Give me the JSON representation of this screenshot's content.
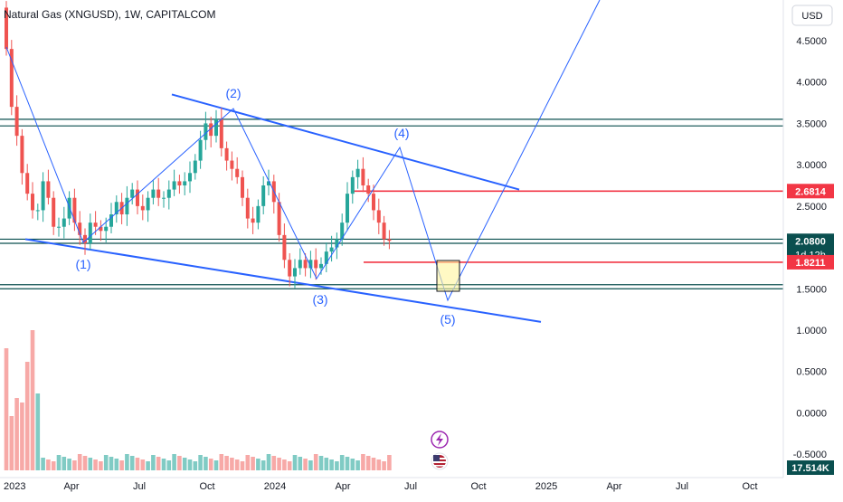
{
  "header": {
    "title": "Natural Gas (XNGUSD), 1W, CAPITALCOM"
  },
  "currency_button": {
    "label": "USD"
  },
  "colors": {
    "up": "#26a69a",
    "down": "#ef5350",
    "line": "#2962ff",
    "level": "#0a4f4f",
    "red": "#f23645",
    "box": "#fff59d"
  },
  "icons": {
    "lightning": "lightning-icon",
    "flag": "us-flag-icon"
  },
  "chart_data": {
    "type": "candlestick",
    "symbol": "XNGUSD",
    "timeframe": "1W",
    "ylim": [
      -0.6,
      4.9
    ],
    "y_ticks": [
      "4.5000",
      "4.0000",
      "3.5000",
      "3.0000",
      "2.5000",
      "2.0000",
      "1.5000",
      "1.0000",
      "0.5000",
      "0.0000",
      "-0.5000"
    ],
    "x_ticks": [
      "2023",
      "Apr",
      "Jul",
      "Oct",
      "2024",
      "Apr",
      "Jul",
      "Oct",
      "2025",
      "Apr",
      "Jul",
      "Oct"
    ],
    "closes": [
      4.4,
      3.7,
      3.35,
      2.9,
      2.65,
      2.45,
      2.45,
      2.8,
      2.6,
      2.25,
      2.25,
      2.35,
      2.6,
      2.3,
      2.15,
      2.05,
      2.3,
      2.25,
      2.2,
      2.25,
      2.4,
      2.55,
      2.4,
      2.6,
      2.7,
      2.5,
      2.45,
      2.6,
      2.7,
      2.6,
      2.6,
      2.7,
      2.8,
      2.75,
      2.8,
      2.9,
      3.05,
      3.3,
      3.5,
      3.35,
      3.55,
      3.2,
      3.05,
      2.95,
      2.85,
      2.6,
      2.35,
      2.3,
      2.5,
      2.75,
      2.8,
      2.55,
      2.15,
      1.85,
      1.65,
      1.75,
      1.85,
      1.75,
      1.85,
      1.75,
      1.8,
      1.95,
      2.0,
      2.1,
      2.3,
      2.65,
      2.85,
      2.95,
      2.75,
      2.65,
      2.45,
      2.3,
      2.1,
      2.08
    ],
    "price_tags": [
      {
        "label": "2.6814",
        "value": 2.6814,
        "color": "#f23645"
      },
      {
        "label": "2.0800",
        "value": 2.08,
        "color": "#0a4f4f",
        "sublabel": "1d 12h"
      },
      {
        "label": "1.8211",
        "value": 1.8211,
        "color": "#f23645"
      }
    ],
    "volume_tag": {
      "label": "17.514K",
      "color": "#0a4f4f"
    },
    "horizontal_levels": [
      3.55,
      3.47,
      2.1,
      2.05,
      1.55,
      1.5
    ],
    "red_lines": [
      2.6814,
      1.8211
    ],
    "wave_labels": [
      "(1)",
      "(2)",
      "(3)",
      "(4)",
      "(5)"
    ],
    "channel": {
      "upper": [
        [
          2023.62,
          3.85
        ],
        [
          2024.9,
          2.7
        ]
      ],
      "lower": [
        [
          2023.08,
          2.1
        ],
        [
          2024.98,
          1.1
        ]
      ]
    },
    "grid": false,
    "legend": "none"
  }
}
